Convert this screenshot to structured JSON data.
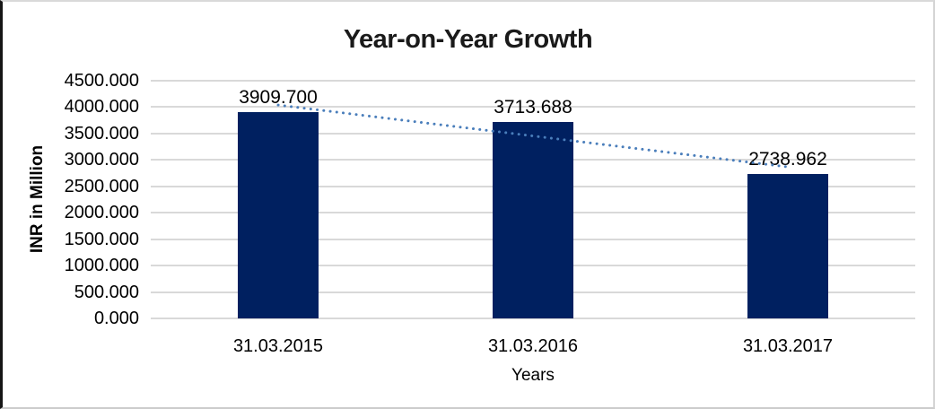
{
  "chart_data": {
    "type": "bar",
    "title": "Year-on-Year Growth",
    "categories": [
      "31.03.2015",
      "31.03.2016",
      "31.03.2017"
    ],
    "values": [
      3909.7,
      3713.688,
      2738.962
    ],
    "data_labels": [
      "3909.700",
      "3713.688",
      "2738.962"
    ],
    "xlabel": "Years",
    "ylabel": "INR in Million",
    "ylim": [
      0,
      4500
    ],
    "ytick_step": 500,
    "ytick_labels": [
      "4500.000",
      "4000.000",
      "3500.000",
      "3000.000",
      "2500.000",
      "2000.000",
      "1500.000",
      "1000.000",
      "500.000",
      "0.000"
    ],
    "grid": true,
    "legend": "none",
    "bar_color": "#002060",
    "gridline_color": "#d9d9d9",
    "text_color": "#000000",
    "title_color": "#1a1a1a",
    "trendline": {
      "type": "linear",
      "style": "dotted",
      "color": "#4a7ebb",
      "endpoint_values": [
        4039.486,
        2868.748
      ]
    }
  }
}
